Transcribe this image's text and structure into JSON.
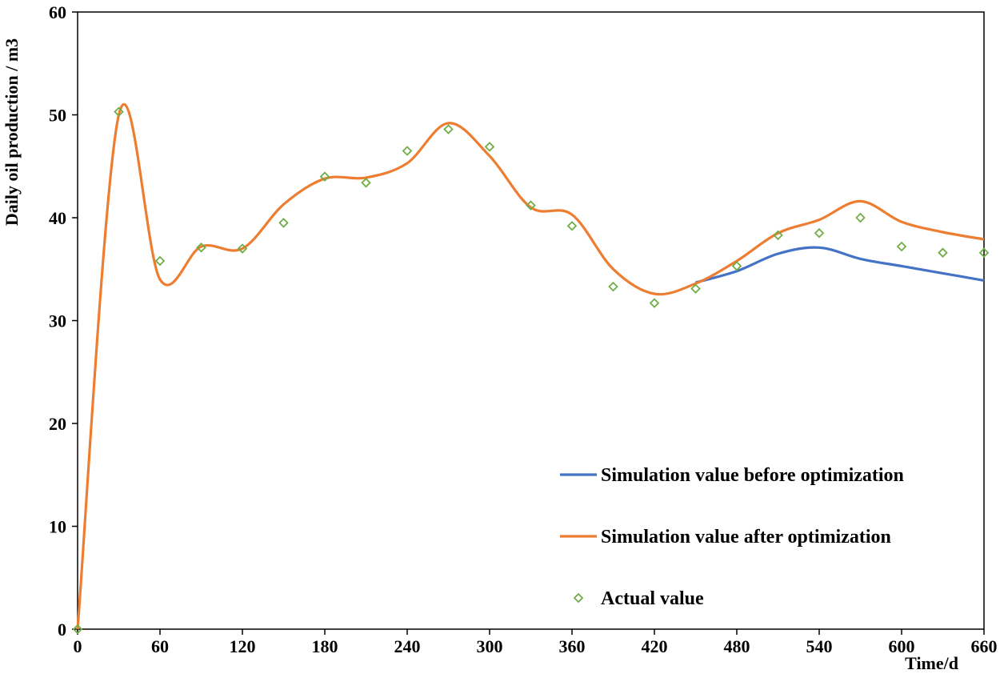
{
  "chart_data": {
    "type": "line",
    "xlabel": "Time/d",
    "ylabel": "Daily oil production / m3",
    "xlim": [
      0,
      660
    ],
    "ylim": [
      0,
      60
    ],
    "xticks": [
      "0",
      "60",
      "120",
      "180",
      "240",
      "300",
      "360",
      "420",
      "480",
      "540",
      "600",
      "660"
    ],
    "yticks": [
      "0",
      "10",
      "20",
      "30",
      "40",
      "50",
      "60"
    ],
    "grid": false,
    "legend_position": "bottom-right",
    "series": [
      {
        "name": "Simulation value before optimization",
        "kind": "line",
        "color": "#4472C4",
        "x": [
          450,
          480,
          510,
          540,
          570,
          600,
          630,
          660
        ],
        "y": [
          33.7,
          34.8,
          36.5,
          37.1,
          36.0,
          35.3,
          34.6,
          33.9
        ]
      },
      {
        "name": "Simulation value after optimization",
        "kind": "line",
        "color": "#ED7D31",
        "x": [
          0,
          30,
          60,
          90,
          120,
          150,
          180,
          210,
          240,
          270,
          300,
          330,
          360,
          390,
          420,
          450,
          480,
          510,
          540,
          570,
          600,
          630,
          660
        ],
        "y": [
          0,
          50.0,
          34.0,
          37.2,
          37.0,
          41.3,
          43.8,
          43.9,
          45.3,
          49.2,
          46.0,
          41.0,
          40.3,
          35.0,
          32.6,
          33.6,
          35.8,
          38.5,
          39.8,
          41.6,
          39.6,
          38.6,
          37.9
        ]
      },
      {
        "name": "Actual value",
        "kind": "scatter",
        "color": "#70AD47",
        "x": [
          0,
          30,
          60,
          90,
          120,
          150,
          180,
          210,
          240,
          270,
          300,
          330,
          360,
          390,
          420,
          450,
          480,
          510,
          540,
          570,
          600,
          630,
          660
        ],
        "y": [
          0,
          50.3,
          35.8,
          37.1,
          37.0,
          39.5,
          44.0,
          43.4,
          46.5,
          48.6,
          46.9,
          41.2,
          39.2,
          33.3,
          31.7,
          33.1,
          35.3,
          38.3,
          38.5,
          40.0,
          37.2,
          36.6,
          36.6
        ]
      }
    ]
  }
}
